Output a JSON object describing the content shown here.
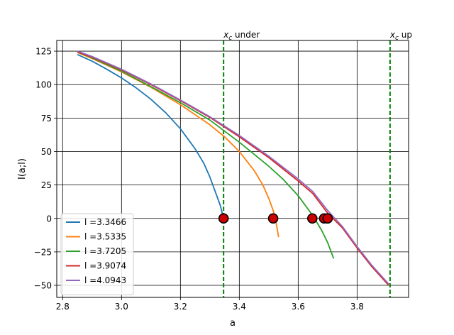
{
  "chart_data": {
    "type": "line",
    "title": "",
    "xlabel": "a",
    "ylabel": "I(a;l)",
    "xlim": [
      2.78,
      3.975
    ],
    "ylim": [
      -59,
      133
    ],
    "xticks": [
      2.8,
      3.0,
      3.2,
      3.4,
      3.6,
      3.8
    ],
    "xtick_labels": [
      "2.8",
      "3.0",
      "3.2",
      "3.4",
      "3.6",
      "3.8"
    ],
    "yticks": [
      -50,
      -25,
      0,
      25,
      50,
      75,
      100,
      125
    ],
    "ytick_labels": [
      "−50",
      "−25",
      "0",
      "25",
      "50",
      "75",
      "100",
      "125"
    ],
    "grid": true,
    "legend_position": "lower-left",
    "series": [
      {
        "name": "l =3.3466",
        "color": "#1f77b4",
        "x": [
          2.85,
          2.9,
          2.95,
          3.0,
          3.05,
          3.1,
          3.15,
          3.2,
          3.25,
          3.28,
          3.3,
          3.32,
          3.335,
          3.3466
        ],
        "y": [
          122.5,
          117.5,
          111.5,
          105,
          97.5,
          89,
          79,
          67,
          52,
          41,
          31,
          19,
          10,
          0
        ]
      },
      {
        "name": "l =3.5335",
        "color": "#ff7f0e",
        "x": [
          2.85,
          2.9,
          3.0,
          3.1,
          3.2,
          3.3,
          3.35,
          3.4,
          3.45,
          3.48,
          3.5,
          3.515,
          3.525,
          3.5335
        ],
        "y": [
          124,
          119.5,
          109.5,
          98,
          85,
          70,
          61,
          50,
          36,
          25,
          15,
          6,
          -3,
          -14
        ]
      },
      {
        "name": "l =3.7205",
        "color": "#2ca02c",
        "x": [
          2.85,
          2.9,
          3.0,
          3.1,
          3.2,
          3.3,
          3.4,
          3.5,
          3.55,
          3.6,
          3.65,
          3.68,
          3.7,
          3.7205
        ],
        "y": [
          124.5,
          120,
          110,
          98.5,
          86.5,
          73.5,
          57,
          39,
          29,
          17,
          2,
          -9,
          -18,
          -30
        ]
      },
      {
        "name": "l =3.9074",
        "color": "#d62728",
        "x": [
          2.85,
          2.9,
          3.0,
          3.1,
          3.2,
          3.3,
          3.4,
          3.5,
          3.6,
          3.65,
          3.7,
          3.75,
          3.8,
          3.85,
          3.9074
        ],
        "y": [
          124.5,
          120.5,
          111,
          100,
          88,
          75.5,
          61,
          45.5,
          28,
          18.5,
          4,
          -7,
          -22,
          -36,
          -50
        ]
      },
      {
        "name": "l =4.0943",
        "color": "#9467bd",
        "x": [
          2.85,
          2.9,
          3.0,
          3.1,
          3.2,
          3.3,
          3.4,
          3.5,
          3.6,
          3.65,
          3.7,
          3.75,
          3.8,
          3.85,
          3.9074
        ],
        "y": [
          125,
          121,
          111.5,
          100.5,
          88.5,
          76,
          62,
          46.5,
          29.5,
          20,
          6,
          -6,
          -21,
          -35,
          -49
        ]
      }
    ],
    "markers": {
      "face_color": "#cc0000",
      "edge_color": "#000000",
      "x": [
        3.3466,
        3.515,
        3.648,
        3.688,
        3.7,
        3.7
      ],
      "y": [
        0,
        0,
        0,
        0,
        0,
        0
      ]
    },
    "vlines": [
      {
        "x": 3.3466,
        "color": "#008000",
        "style": "dashed",
        "label_main": "x",
        "label_sub": "c",
        "label_rest": " under"
      },
      {
        "x": 3.912,
        "color": "#008000",
        "style": "dashed",
        "label_main": "x",
        "label_sub": "c",
        "label_rest": " up"
      }
    ]
  }
}
